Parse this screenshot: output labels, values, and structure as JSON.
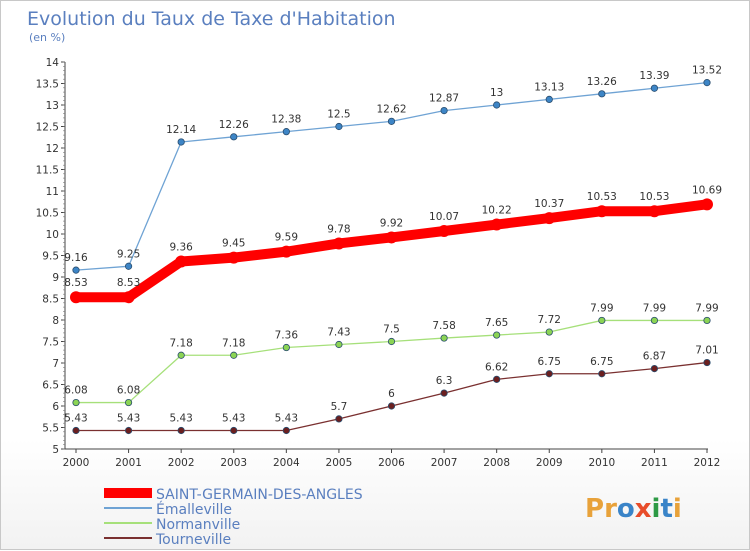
{
  "colors": {
    "title": "#5a7fbf",
    "axis": "#333333",
    "grid": "#e8e8e8"
  },
  "logo": {
    "text": "Proxiti",
    "letter_colors": [
      "#e8a23a",
      "#e8a23a",
      "#3a84c8",
      "#e84d2a",
      "#2e9a45",
      "#3a84c8",
      "#e8a23a"
    ]
  },
  "chart_data": {
    "type": "line",
    "title": "Evolution du Taux de Taxe d'Habitation",
    "subtitle": "(en %)",
    "xlabel": "",
    "ylabel": "",
    "x": [
      "2000",
      "2001",
      "2002",
      "2003",
      "2004",
      "2005",
      "2006",
      "2007",
      "2008",
      "2009",
      "2010",
      "2011",
      "2012"
    ],
    "ylim": [
      5,
      14
    ],
    "yticks": [
      "5",
      "5.5",
      "6",
      "6.5",
      "7",
      "7.5",
      "8",
      "8.5",
      "9",
      "9.5",
      "10",
      "10.5",
      "11",
      "11.5",
      "12",
      "12.5",
      "13",
      "13.5",
      "14"
    ],
    "grid": false,
    "legend_position": "bottom-left",
    "series": [
      {
        "name": "SAINT-GERMAIN-DES-ANGLES",
        "color": "#ff0000",
        "point_color": "#ff0000",
        "bold": true,
        "values": [
          8.53,
          8.53,
          9.36,
          9.45,
          9.59,
          9.78,
          9.92,
          10.07,
          10.22,
          10.37,
          10.53,
          10.53,
          10.69
        ],
        "labels": [
          "8.53",
          "8.53",
          "9.36",
          "9.45",
          "9.59",
          "9.78",
          "9.92",
          "10.07",
          "10.22",
          "10.37",
          "10.53",
          "10.53",
          "10.69"
        ]
      },
      {
        "name": "Émalleville",
        "color": "#6fa3d4",
        "point_color": "#3d85c6",
        "bold": false,
        "values": [
          9.16,
          9.25,
          12.14,
          12.26,
          12.38,
          12.5,
          12.62,
          12.87,
          13,
          13.13,
          13.26,
          13.39,
          13.52
        ],
        "labels": [
          "9.16",
          "9.25",
          "12.14",
          "12.26",
          "12.38",
          "12.5",
          "12.62",
          "12.87",
          "13",
          "13.13",
          "13.26",
          "13.39",
          "13.52"
        ]
      },
      {
        "name": "Normanville",
        "color": "#a6e07a",
        "point_color": "#8bd454",
        "bold": false,
        "values": [
          6.08,
          6.08,
          7.18,
          7.18,
          7.36,
          7.43,
          7.5,
          7.58,
          7.65,
          7.72,
          7.99,
          7.99,
          7.99
        ],
        "labels": [
          "6.08",
          "6.08",
          "7.18",
          "7.18",
          "7.36",
          "7.43",
          "7.5",
          "7.58",
          "7.65",
          "7.72",
          "7.99",
          "7.99",
          "7.99"
        ]
      },
      {
        "name": "Tourneville",
        "color": "#7a3030",
        "point_color": "#6b1f1f",
        "bold": false,
        "values": [
          5.43,
          5.43,
          5.43,
          5.43,
          5.43,
          5.7,
          6,
          6.3,
          6.62,
          6.75,
          6.75,
          6.87,
          7.01
        ],
        "labels": [
          "5.43",
          "5.43",
          "5.43",
          "5.43",
          "5.43",
          "5.7",
          "6",
          "6.3",
          "6.62",
          "6.75",
          "6.75",
          "6.87",
          "7.01"
        ]
      }
    ]
  }
}
